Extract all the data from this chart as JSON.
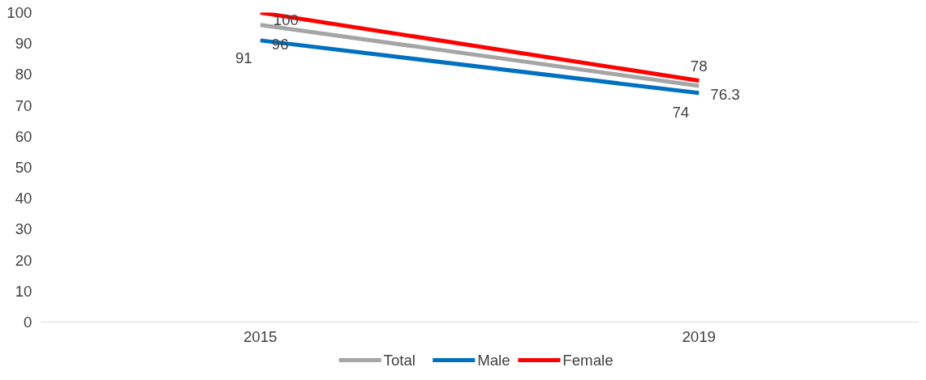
{
  "chart_data": {
    "type": "line",
    "categories": [
      "2015",
      "2019"
    ],
    "series": [
      {
        "name": "Total",
        "color": "#a5a5a5",
        "values": [
          96,
          76.3
        ]
      },
      {
        "name": "Male",
        "color": "#0070c0",
        "values": [
          91,
          74
        ]
      },
      {
        "name": "Female",
        "color": "#ff0000",
        "values": [
          100,
          78
        ]
      }
    ],
    "ylim": [
      0,
      100
    ],
    "yticks": [
      0,
      10,
      20,
      30,
      40,
      50,
      60,
      70,
      80,
      90,
      100
    ],
    "grid": false,
    "legend": "bottom",
    "data_labels": true,
    "marker": "none",
    "line_style": "solid"
  }
}
